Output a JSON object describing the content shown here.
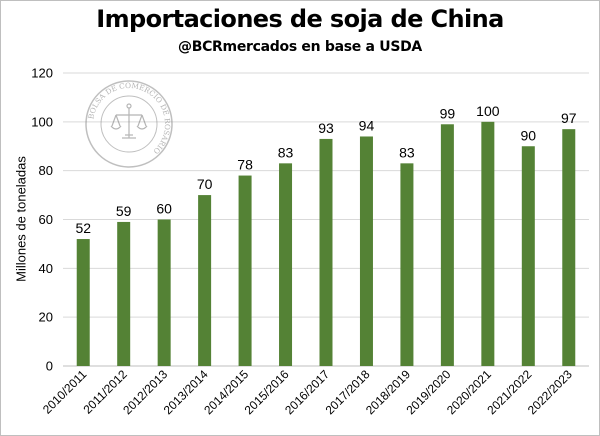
{
  "chart_data": {
    "type": "bar",
    "title": "Importaciones de soja de China",
    "subtitle": "@BCRmercados en base a USDA",
    "ylabel": "Millones de toneladas",
    "xlabel": "",
    "ylim": [
      0,
      120
    ],
    "yticks": [
      0,
      20,
      40,
      60,
      80,
      100,
      120
    ],
    "grid": true,
    "legend": "none",
    "bar_color": "#548235",
    "categories": [
      "2010/2011",
      "2011/2012",
      "2012/2013",
      "2013/2014",
      "2014/2015",
      "2015/2016",
      "2016/2017",
      "2017/2018",
      "2018/2019",
      "2019/2020",
      "2020/2021",
      "2021/2022",
      "2022/2023"
    ],
    "values": [
      52,
      59,
      60,
      70,
      78,
      83,
      93,
      94,
      83,
      99,
      100,
      90,
      97
    ],
    "data_labels": [
      "52",
      "59",
      "60",
      "70",
      "78",
      "83",
      "93",
      "94",
      "83",
      "99",
      "100",
      "90",
      "97"
    ]
  },
  "watermark": {
    "text": "BOLSA DE COMERCIO DE ROSARIO",
    "icon": "scales-of-justice-icon"
  }
}
